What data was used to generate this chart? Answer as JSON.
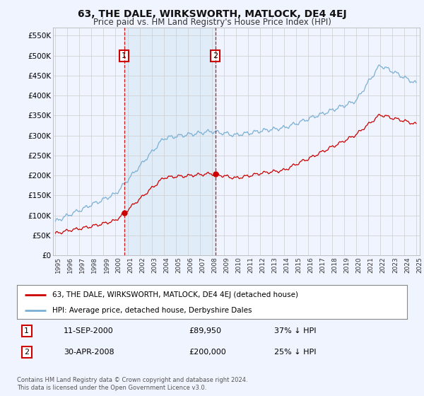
{
  "title": "63, THE DALE, WIRKSWORTH, MATLOCK, DE4 4EJ",
  "subtitle": "Price paid vs. HM Land Registry's House Price Index (HPI)",
  "ylabel_ticks": [
    "£0",
    "£50K",
    "£100K",
    "£150K",
    "£200K",
    "£250K",
    "£300K",
    "£350K",
    "£400K",
    "£450K",
    "£500K",
    "£550K"
  ],
  "ytick_values": [
    0,
    50000,
    100000,
    150000,
    200000,
    250000,
    300000,
    350000,
    400000,
    450000,
    500000,
    550000
  ],
  "ylim": [
    0,
    570000
  ],
  "hpi_color": "#7ab0d4",
  "hpi_fill_color": "#daeaf5",
  "price_color": "#cc0000",
  "legend_line1": "63, THE DALE, WIRKSWORTH, MATLOCK, DE4 4EJ (detached house)",
  "legend_line2": "HPI: Average price, detached house, Derbyshire Dales",
  "table_row1_date": "11-SEP-2000",
  "table_row1_price": "£89,950",
  "table_row1_hpi": "37% ↓ HPI",
  "table_row2_date": "30-APR-2008",
  "table_row2_price": "£200,000",
  "table_row2_hpi": "25% ↓ HPI",
  "footnote": "Contains HM Land Registry data © Crown copyright and database right 2024.\nThis data is licensed under the Open Government Licence v3.0.",
  "bg_color": "#f0f4ff",
  "plot_bg": "#ffffff"
}
